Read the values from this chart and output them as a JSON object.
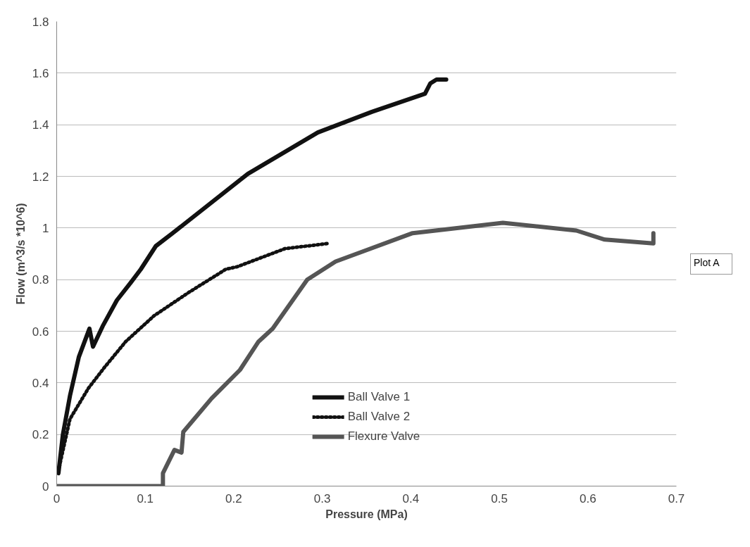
{
  "chart_data": {
    "type": "line",
    "xlabel": "Pressure (MPa)",
    "ylabel": "Flow (m^3/s *10^6)",
    "xlim": [
      0,
      0.7
    ],
    "ylim": [
      0,
      1.8
    ],
    "xticks": [
      0,
      0.1,
      0.2,
      0.3,
      0.4,
      0.5,
      0.6,
      0.7
    ],
    "yticks": [
      0,
      0.2,
      0.4,
      0.6,
      0.8,
      1,
      1.2,
      1.4,
      1.6,
      1.8
    ],
    "grid": "y",
    "legend": "bottom",
    "annotations": [
      "Plot A"
    ],
    "series": [
      {
        "name": "Ball Valve 1",
        "color": "#111111",
        "line_style": "solid",
        "x": [
          0.002,
          0.007,
          0.015,
          0.025,
          0.037,
          0.041,
          0.052,
          0.068,
          0.084,
          0.095,
          0.112,
          0.131,
          0.216,
          0.295,
          0.356,
          0.416,
          0.422,
          0.429,
          0.44
        ],
        "values": [
          0.05,
          0.2,
          0.35,
          0.5,
          0.61,
          0.54,
          0.62,
          0.72,
          0.79,
          0.84,
          0.93,
          0.98,
          1.21,
          1.37,
          1.45,
          1.52,
          1.56,
          1.575,
          1.575
        ]
      },
      {
        "name": "Ball Valve 2",
        "color": "#111111",
        "line_style": "dotted",
        "x": [
          0.002,
          0.015,
          0.036,
          0.054,
          0.078,
          0.11,
          0.149,
          0.191,
          0.204,
          0.258,
          0.307
        ],
        "values": [
          0.06,
          0.26,
          0.38,
          0.46,
          0.56,
          0.66,
          0.75,
          0.84,
          0.85,
          0.92,
          0.94
        ]
      },
      {
        "name": "Flexure Valve",
        "color": "#555555",
        "line_style": "solid",
        "x": [
          0.0,
          0.12,
          0.12,
          0.133,
          0.141,
          0.143,
          0.175,
          0.207,
          0.228,
          0.244,
          0.283,
          0.315,
          0.402,
          0.504,
          0.587,
          0.619,
          0.674,
          0.674
        ],
        "values": [
          0,
          0,
          0.05,
          0.14,
          0.13,
          0.21,
          0.34,
          0.45,
          0.56,
          0.61,
          0.8,
          0.87,
          0.98,
          1.02,
          0.99,
          0.955,
          0.94,
          0.98
        ]
      }
    ]
  }
}
